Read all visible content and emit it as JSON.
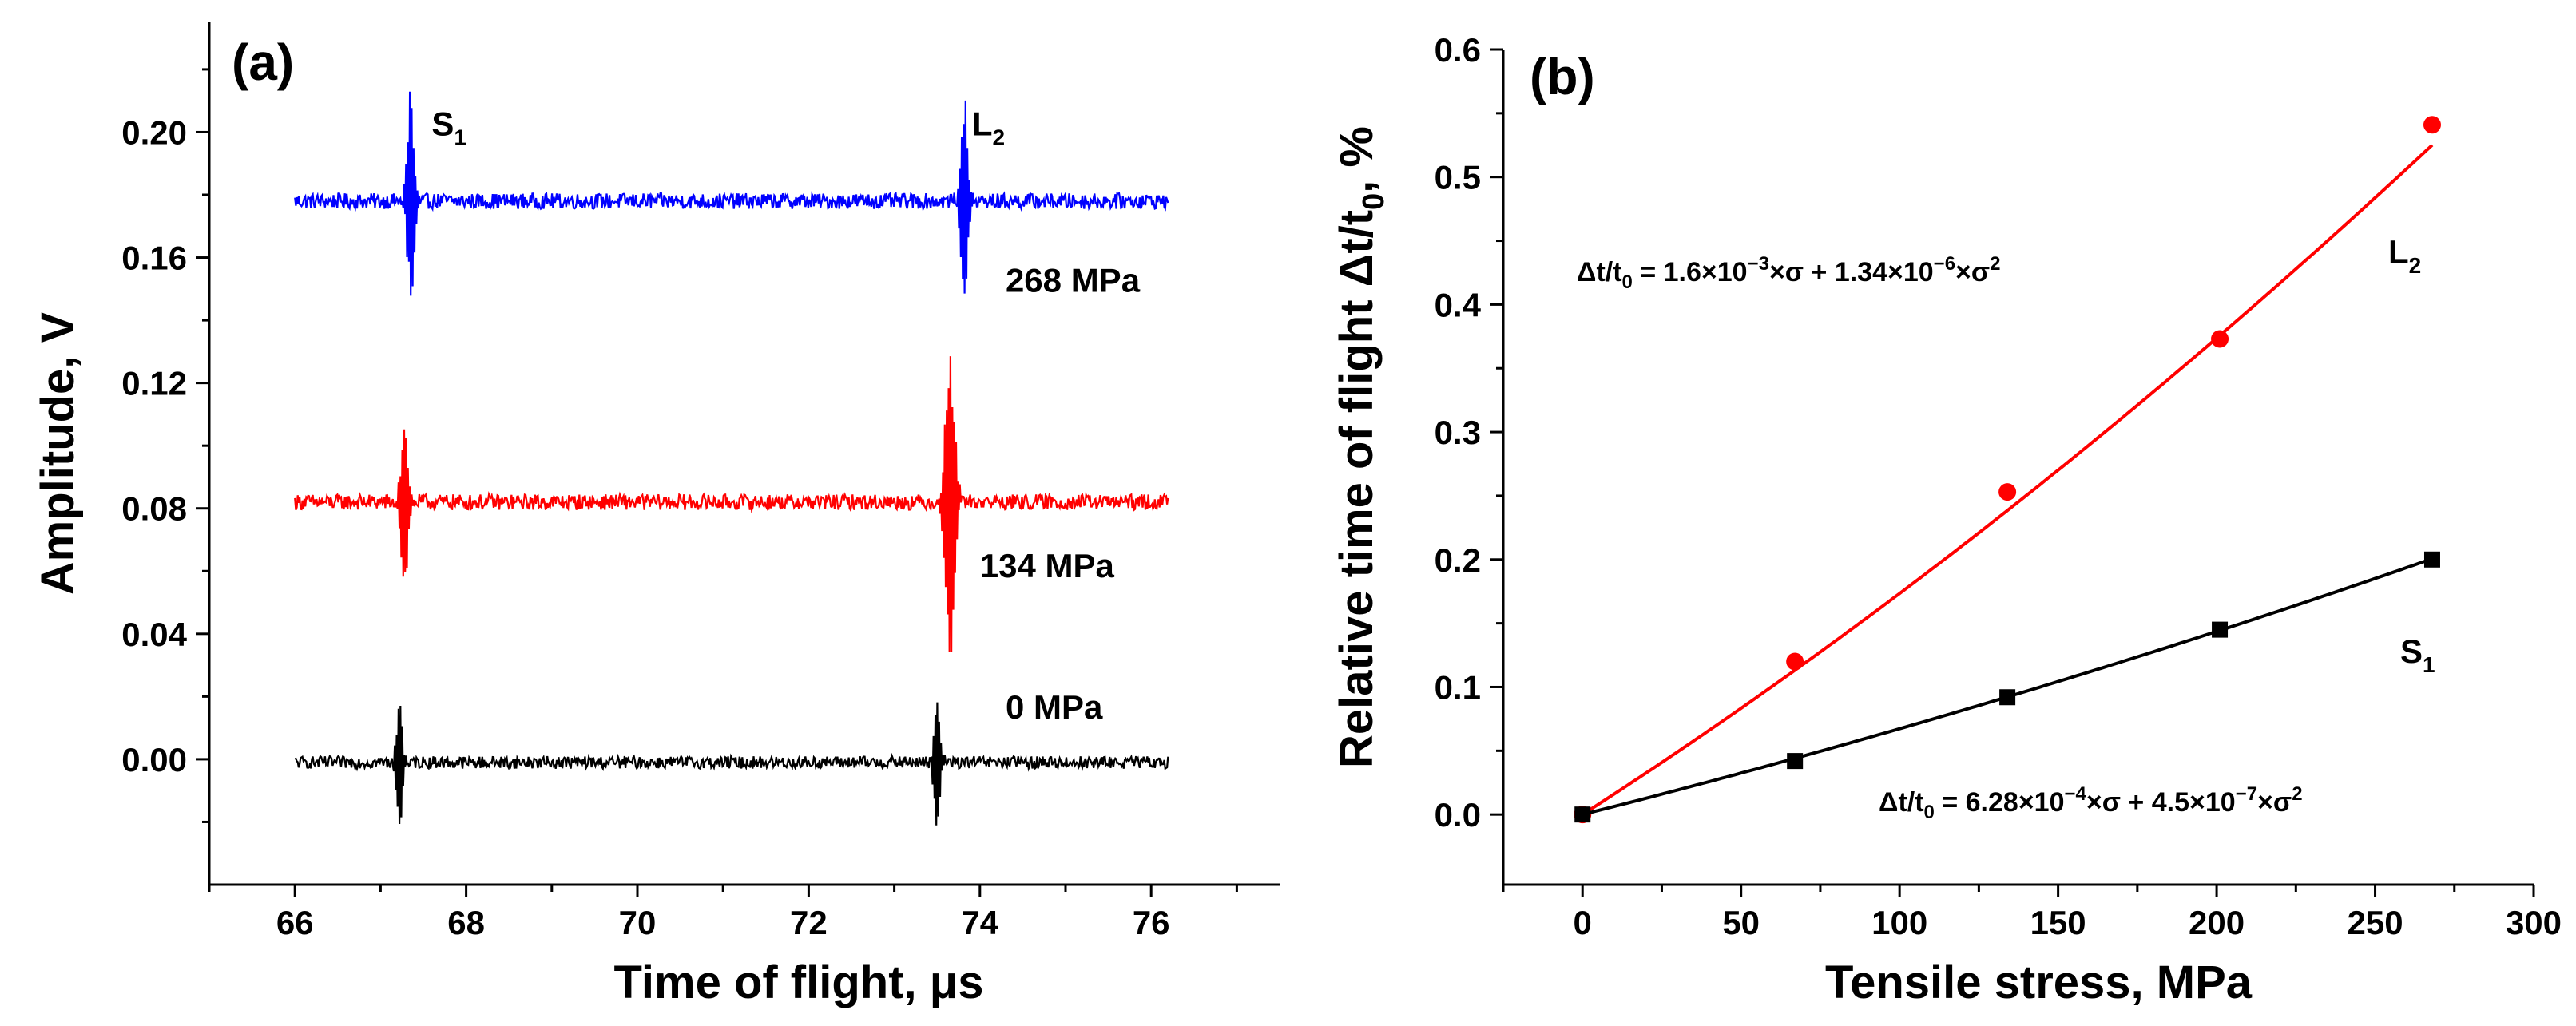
{
  "colors": {
    "blue": "#0000ff",
    "red": "#ff0000",
    "black": "#000000"
  },
  "chart_data": [
    {
      "panel": "(a)",
      "type": "line",
      "xlabel": "Time of flight, μs",
      "ylabel": "Amplitude, V",
      "xlim": [
        65,
        77.5
      ],
      "ylim": [
        -0.04,
        0.235
      ],
      "xticks": [
        66,
        68,
        70,
        72,
        74,
        76
      ],
      "yticks": [
        0.0,
        0.04,
        0.08,
        0.12,
        0.16,
        0.2
      ],
      "yticklabels": [
        "0.00",
        "0.04",
        "0.08",
        "0.12",
        "0.16",
        "0.20"
      ],
      "series": [
        {
          "name": "268 MPa",
          "color": "#0000ff",
          "baseline": 0.178,
          "x_start": 66.0,
          "x_end": 76.2,
          "noise": 0.0025,
          "bursts": [
            {
              "x": 67.35,
              "amp_up": 0.035,
              "amp_down": 0.034,
              "width": 0.12
            },
            {
              "x": 73.82,
              "amp_up": 0.032,
              "amp_down": 0.033,
              "width": 0.12
            }
          ]
        },
        {
          "name": "134 MPa",
          "color": "#ff0000",
          "baseline": 0.082,
          "x_start": 66.0,
          "x_end": 76.2,
          "noise": 0.0025,
          "bursts": [
            {
              "x": 67.28,
              "amp_up": 0.026,
              "amp_down": 0.028,
              "width": 0.12
            },
            {
              "x": 73.65,
              "amp_up": 0.052,
              "amp_down": 0.054,
              "width": 0.16
            }
          ]
        },
        {
          "name": "0 MPa",
          "color": "#000000",
          "baseline": -0.001,
          "x_start": 66.0,
          "x_end": 76.2,
          "noise": 0.002,
          "bursts": [
            {
              "x": 67.22,
              "amp_up": 0.021,
              "amp_down": 0.021,
              "width": 0.1
            },
            {
              "x": 73.5,
              "amp_up": 0.022,
              "amp_down": 0.024,
              "width": 0.1
            }
          ]
        }
      ],
      "annotations": [
        {
          "text": "S",
          "sub": "1",
          "x": 67.8,
          "y": 0.199
        },
        {
          "text": "L",
          "sub": "2",
          "x": 74.1,
          "y": 0.199
        },
        {
          "text": "268 MPa",
          "x": 74.3,
          "y": 0.149
        },
        {
          "text": "134 MPa",
          "x": 74.0,
          "y": 0.058
        },
        {
          "text": "0 MPa",
          "x": 74.3,
          "y": 0.013
        }
      ]
    },
    {
      "panel": "(b)",
      "type": "scatter",
      "xlabel": "Tensile stress, MPa",
      "ylabel_main": "Relative time of flight Δt/t",
      "ylabel_sub": "0",
      "ylabel_tail": ", %",
      "xlim": [
        -25,
        300
      ],
      "ylim": [
        -0.055,
        0.6
      ],
      "xticks": [
        0,
        50,
        100,
        150,
        200,
        250,
        300
      ],
      "yticks": [
        0.0,
        0.1,
        0.2,
        0.3,
        0.4,
        0.5,
        0.6
      ],
      "yticklabels": [
        "0.0",
        "0.1",
        "0.2",
        "0.3",
        "0.4",
        "0.5",
        "0.6"
      ],
      "series": [
        {
          "name": "L2",
          "color": "#ff0000",
          "marker": "circle",
          "x": [
            0,
            67,
            134,
            201,
            268
          ],
          "y": [
            0.0,
            0.12,
            0.253,
            0.373,
            0.541
          ],
          "fit": {
            "a": 0.0016,
            "b": 1.34e-06
          }
        },
        {
          "name": "S1",
          "color": "#000000",
          "marker": "square",
          "x": [
            0,
            67,
            134,
            201,
            268
          ],
          "y": [
            0.0,
            0.042,
            0.092,
            0.145,
            0.2
          ],
          "fit": {
            "a": 0.000628,
            "b": 4.5e-07
          }
        }
      ],
      "equations": [
        {
          "lhs": "Δt/t",
          "lhs_sub": "0",
          "p1": " = 1.6×10",
          "e1": "−3",
          "p2": "×σ + 1.34×10",
          "e2": "−6",
          "p3": "×σ",
          "e3": "2"
        },
        {
          "lhs": "Δt/t",
          "lhs_sub": "0",
          "p1": " = 6.28×10",
          "e1": "−4",
          "p2": "×σ + 4.5×10",
          "e2": "−7",
          "p3": "×σ",
          "e3": "2"
        }
      ],
      "labels": [
        {
          "text": "L",
          "sub": "2"
        },
        {
          "text": "S",
          "sub": "1"
        }
      ]
    }
  ]
}
